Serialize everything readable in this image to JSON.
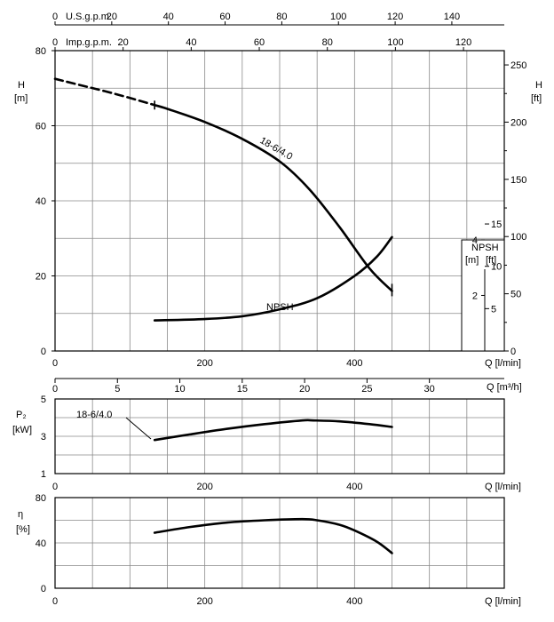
{
  "chart_data": [
    {
      "type": "line",
      "panel": "head",
      "top_axes": [
        {
          "label": "U.S.g.p.m.",
          "ticks": [
            "0",
            "20",
            "40",
            "60",
            "80",
            "100",
            "120",
            "140"
          ]
        },
        {
          "label": "Imp.g.p.m.",
          "ticks": [
            "0",
            "20",
            "40",
            "60",
            "80",
            "100",
            "120"
          ]
        }
      ],
      "ylabel_left": [
        "H",
        "[m]"
      ],
      "ylabel_right": [
        "H",
        "[ft]"
      ],
      "y_ticks_left": [
        "0",
        "20",
        "40",
        "60",
        "80"
      ],
      "y_ticks_right": [
        "0",
        "50",
        "100",
        "150",
        "200",
        "250"
      ],
      "ylim": [
        0,
        80
      ],
      "xlim": [
        0,
        600
      ],
      "x_ticks": [
        "0",
        "200",
        "400"
      ],
      "xlabel": "Q [l/min]",
      "grid": true,
      "series": [
        {
          "name": "18-6/4.0",
          "x": [
            0,
            30,
            80,
            133,
            150,
            200,
            250,
            300,
            340,
            380,
            420,
            450
          ],
          "y": [
            72.5,
            71,
            68.5,
            65.5,
            64.5,
            61,
            56.5,
            50.5,
            43,
            33,
            22,
            16
          ],
          "dashed_until": 133
        },
        {
          "name": "NPSH",
          "x": [
            133,
            200,
            250,
            300,
            350,
            400,
            430,
            450
          ],
          "y": [
            1.1,
            1.15,
            1.25,
            1.5,
            1.9,
            2.7,
            3.4,
            4.1
          ]
        }
      ],
      "npsh_axis": {
        "title": "NPSH",
        "units": [
          "[m]",
          "[ft]"
        ],
        "m_ticks": [
          "2",
          "4"
        ],
        "ft_ticks": [
          "5",
          "10",
          "15"
        ]
      }
    },
    {
      "type": "line",
      "panel": "flow_m3h",
      "x_ticks": [
        "0",
        "5",
        "10",
        "15",
        "20",
        "25",
        "30"
      ],
      "xlabel": "Q [m³/h]"
    },
    {
      "type": "line",
      "panel": "power",
      "ylabel": [
        "P₂",
        "[kW]"
      ],
      "y_ticks": [
        "1",
        "3",
        "5"
      ],
      "ylim": [
        1,
        5
      ],
      "x_ticks": [
        "0",
        "200",
        "400"
      ],
      "xlabel": "Q [l/min]",
      "grid": true,
      "series": [
        {
          "name": "18-6/4.0",
          "x": [
            133,
            180,
            230,
            280,
            330,
            345,
            380,
            420,
            450
          ],
          "y": [
            2.8,
            3.1,
            3.4,
            3.65,
            3.85,
            3.85,
            3.8,
            3.65,
            3.5
          ]
        }
      ]
    },
    {
      "type": "line",
      "panel": "efficiency",
      "ylabel": [
        "η",
        "[%]"
      ],
      "y_ticks": [
        "0",
        "40",
        "80"
      ],
      "ylim": [
        0,
        80
      ],
      "x_ticks": [
        "0",
        "200",
        "400"
      ],
      "xlabel": "Q [l/min]",
      "grid": true,
      "series": [
        {
          "name": "efficiency",
          "x": [
            133,
            180,
            230,
            280,
            330,
            350,
            380,
            400,
            430,
            450
          ],
          "y": [
            49,
            54,
            58,
            60,
            61,
            60,
            56,
            51,
            41,
            31
          ]
        }
      ]
    }
  ]
}
